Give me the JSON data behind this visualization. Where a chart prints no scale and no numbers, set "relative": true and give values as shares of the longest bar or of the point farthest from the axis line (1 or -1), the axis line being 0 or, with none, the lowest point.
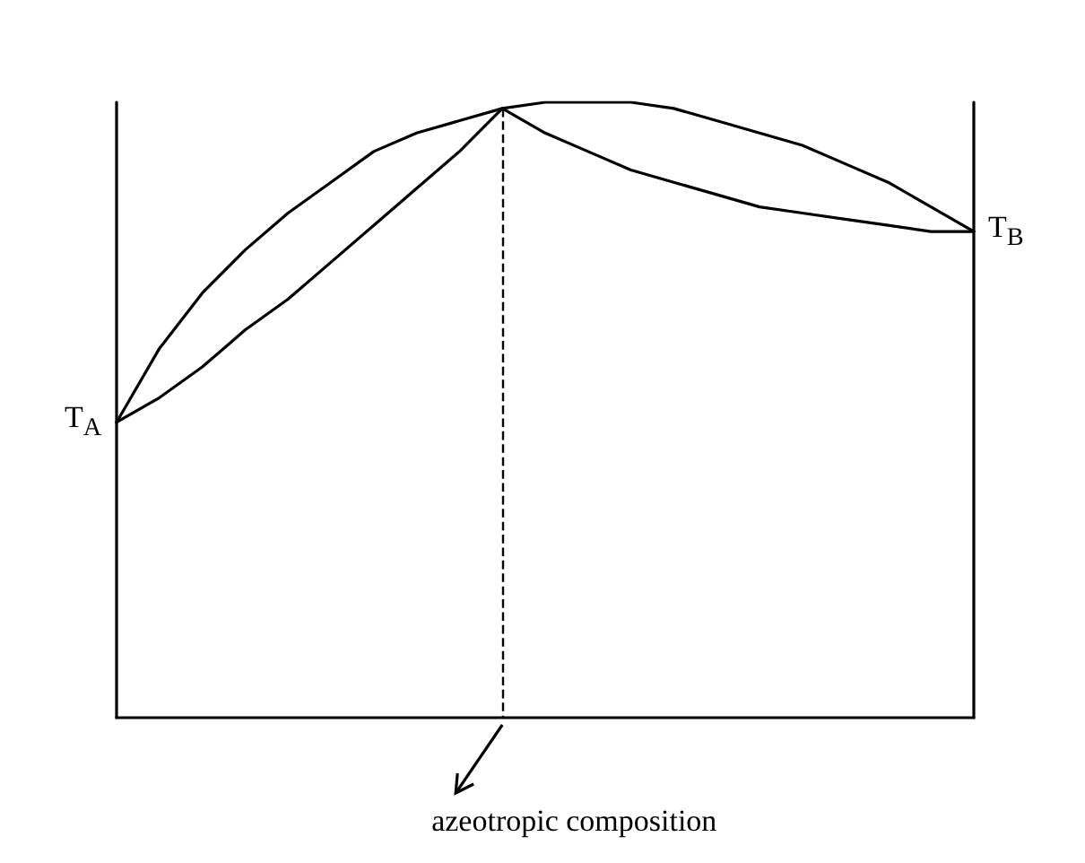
{
  "chart_data": {
    "type": "line",
    "relative": true,
    "grid": false,
    "marker": "none",
    "line_style": "solid",
    "categories": [
      null,
      null,
      null,
      null,
      null,
      null,
      null,
      null,
      null,
      null,
      null,
      null,
      null,
      null,
      null,
      null,
      null,
      null,
      null,
      null,
      null
    ],
    "series": [
      {
        "color": "#000000",
        "values": [
          0.48,
          0.6,
          0.69,
          0.76,
          0.82,
          0.87,
          0.92,
          0.95,
          0.97,
          0.99,
          1.0,
          1.0,
          1.0,
          0.99,
          0.97,
          0.95,
          0.93,
          0.9,
          0.87,
          0.83,
          0.79
        ]
      },
      {
        "color": "#000000",
        "values": [
          0.48,
          0.52,
          0.57,
          0.63,
          0.68,
          0.74,
          0.8,
          0.86,
          0.92,
          0.99,
          0.95,
          0.92,
          0.89,
          0.87,
          0.85,
          0.83,
          0.82,
          0.81,
          0.8,
          0.79,
          0.79
        ]
      }
    ],
    "annotations": [
      "T$_{A}$",
      "T$_{B}$",
      "azeotropic composition"
    ]
  }
}
